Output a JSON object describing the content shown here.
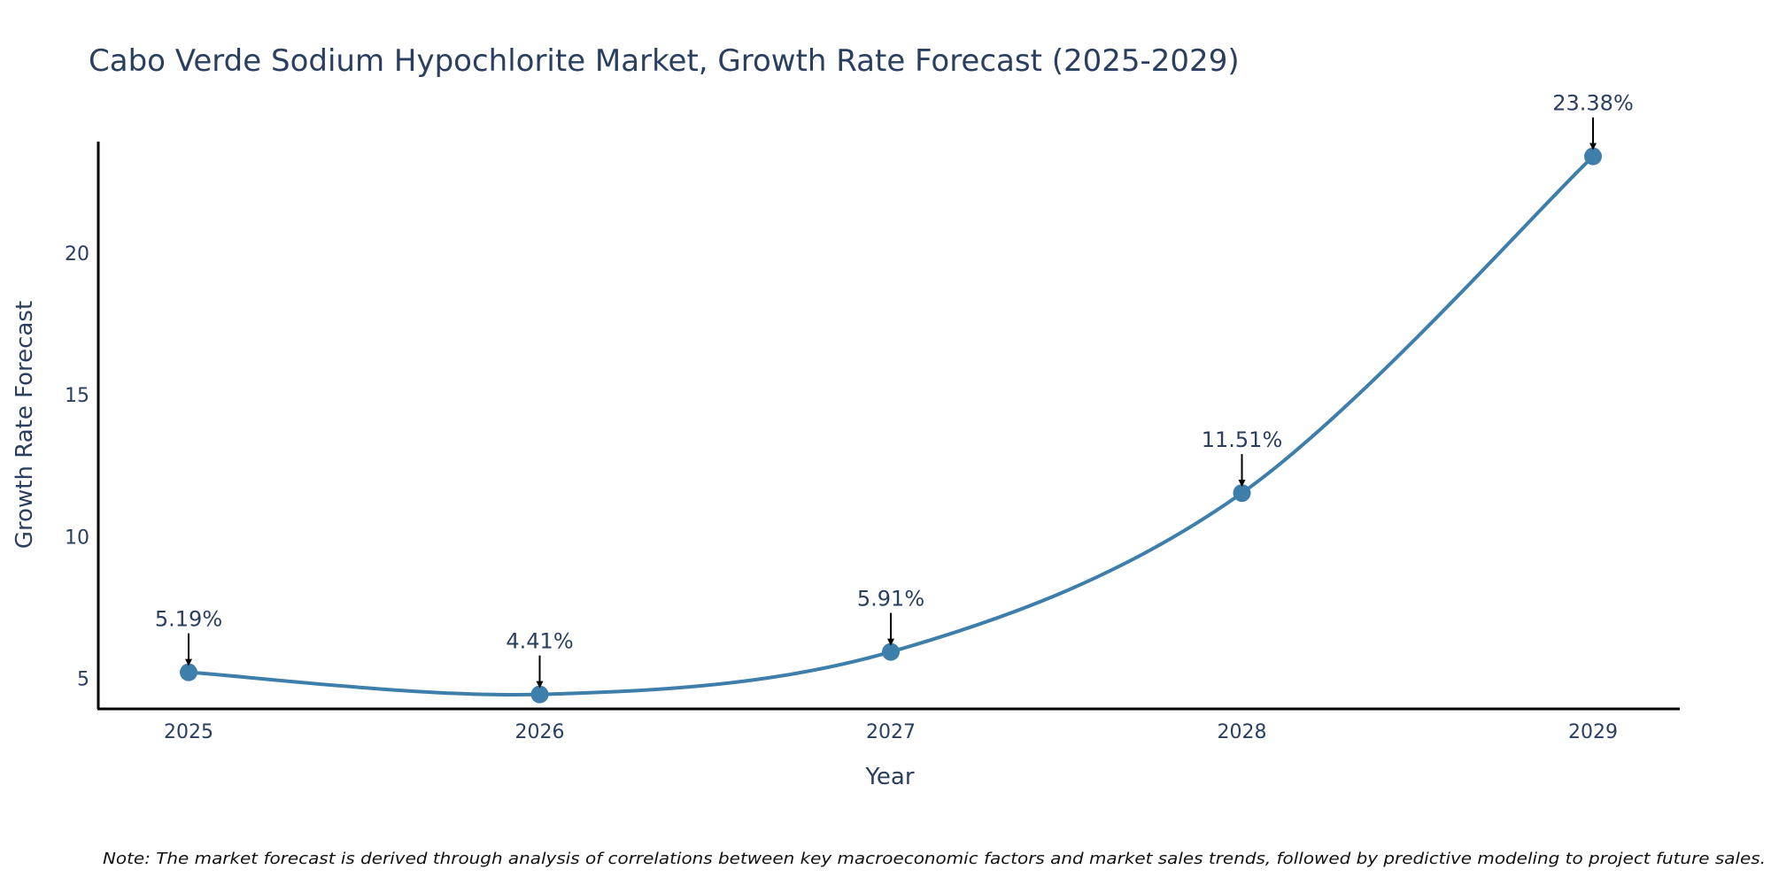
{
  "chart_data": {
    "type": "line",
    "title": "Cabo Verde Sodium Hypochlorite Market, Growth Rate Forecast (2025-2029)",
    "xlabel": "Year",
    "ylabel": "Growth Rate Forecast",
    "categories": [
      "2025",
      "2026",
      "2027",
      "2028",
      "2029"
    ],
    "series": [
      {
        "name": "Growth Rate Forecast",
        "values": [
          5.19,
          4.41,
          5.91,
          11.51,
          23.38
        ],
        "labels": [
          "5.19%",
          "4.41%",
          "5.91%",
          "11.51%",
          "23.38%"
        ],
        "color": "#3d7eab"
      }
    ],
    "yticks": [
      5,
      10,
      15,
      20
    ],
    "ytick_labels": [
      "5",
      "10",
      "15",
      "20"
    ],
    "ylim": [
      3.9,
      23.9
    ],
    "grid": false,
    "note": "Note: The market forecast is derived through analysis of correlations between key macroeconomic factors and market sales trends, followed by predictive modeling to project future sales."
  }
}
